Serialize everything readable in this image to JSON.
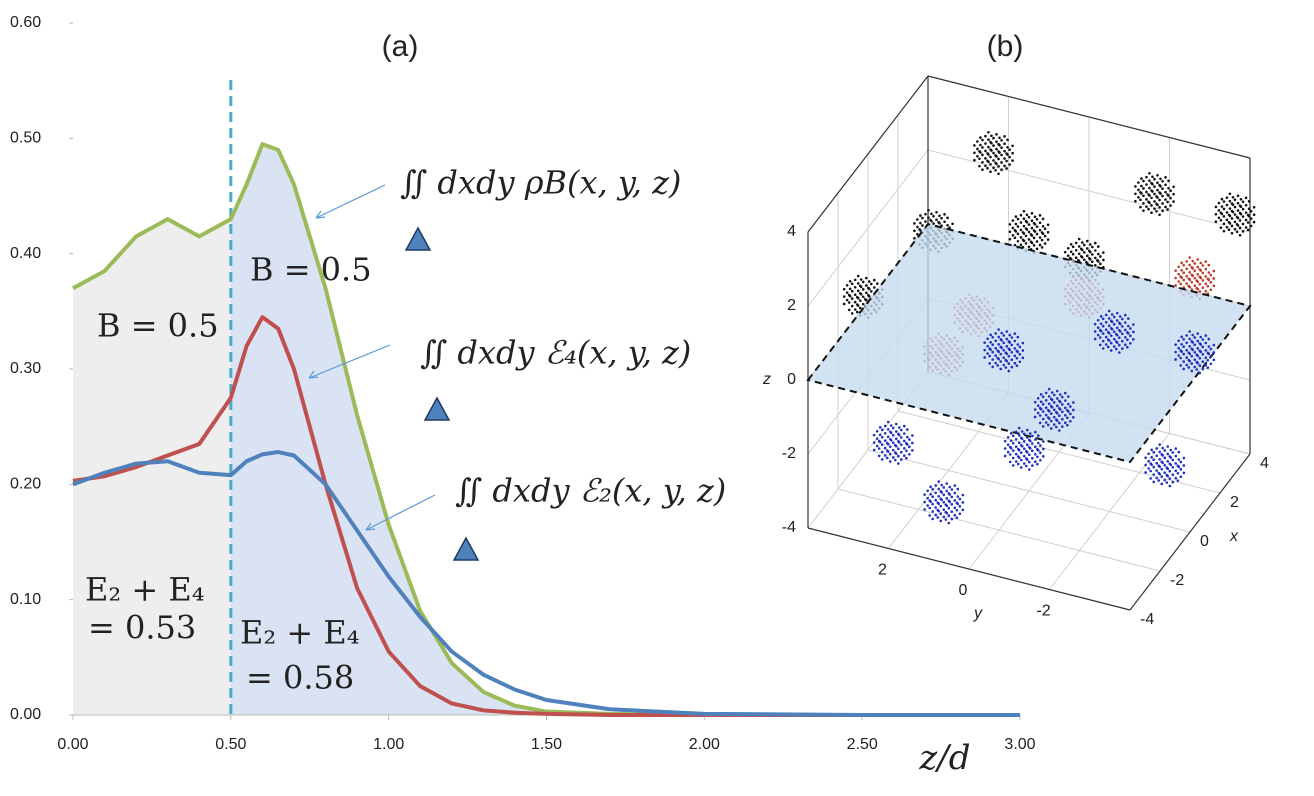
{
  "chart_data": [
    {
      "type": "line",
      "title": "(a)",
      "xlabel": "z/d",
      "x": [
        0,
        0.1,
        0.2,
        0.3,
        0.4,
        0.5,
        0.55,
        0.6,
        0.65,
        0.7,
        0.8,
        0.9,
        1.0,
        1.1,
        1.2,
        1.3,
        1.4,
        1.5,
        1.7,
        2.0,
        2.5,
        3.0
      ],
      "series": [
        {
          "name": "∬ dxdy ρB(x, y, z)",
          "color": "#9bbb59",
          "values": [
            0.37,
            0.385,
            0.415,
            0.43,
            0.415,
            0.43,
            0.46,
            0.495,
            0.49,
            0.46,
            0.37,
            0.26,
            0.165,
            0.09,
            0.045,
            0.02,
            0.008,
            0.003,
            0.001,
            0,
            0,
            0
          ]
        },
        {
          "name": "∬ dxdy ℰ₄(x, y, z)",
          "color": "#c0504d",
          "values": [
            0.203,
            0.207,
            0.215,
            0.225,
            0.235,
            0.275,
            0.32,
            0.345,
            0.335,
            0.3,
            0.2,
            0.11,
            0.055,
            0.025,
            0.01,
            0.004,
            0.002,
            0.001,
            0,
            0,
            0,
            0
          ]
        },
        {
          "name": "∬ dxdy ℰ₂(x, y, z)",
          "color": "#4f81bd",
          "values": [
            0.2,
            0.21,
            0.218,
            0.22,
            0.21,
            0.208,
            0.22,
            0.226,
            0.228,
            0.225,
            0.2,
            0.16,
            0.12,
            0.085,
            0.055,
            0.035,
            0.022,
            0.013,
            0.005,
            0.001,
            0,
            0
          ]
        }
      ],
      "fill_series": 0,
      "divider": 0.5,
      "divider_color": "#4bacc6",
      "fill_colors": [
        "#eeeeee",
        "#dae3f3"
      ],
      "xlim": [
        0,
        3
      ],
      "ylim": [
        0,
        0.6
      ],
      "xticks": [
        {
          "value": 0,
          "label": "0.00"
        },
        {
          "value": 0.5,
          "label": "0.50"
        },
        {
          "value": 1,
          "label": "1.00"
        },
        {
          "value": 1.5,
          "label": "1.50"
        },
        {
          "value": 2,
          "label": "2.00"
        },
        {
          "value": 2.5,
          "label": "2.50"
        },
        {
          "value": 3,
          "label": "3.00"
        }
      ],
      "yticks": [
        {
          "value": 0,
          "label": "0.00"
        },
        {
          "value": 0.1,
          "label": "0.10"
        },
        {
          "value": 0.2,
          "label": "0.20"
        },
        {
          "value": 0.3,
          "label": "0.30"
        },
        {
          "value": 0.4,
          "label": "0.40"
        },
        {
          "value": 0.5,
          "label": "0.50"
        },
        {
          "value": 0.6,
          "label": "0.60"
        }
      ],
      "annotations": [
        "B = 0.5",
        "B = 0.5",
        "E₂ + E₄",
        "= 0.53",
        "E₂ + E₄",
        "= 0.58"
      ]
    },
    {
      "type": "scatter3d",
      "title": "(b)",
      "xlabel": "x",
      "ylabel": "y",
      "zlabel": "z",
      "xticks": [
        -4,
        -2,
        0,
        2,
        4
      ],
      "yticks": [
        2,
        0,
        -2
      ],
      "zticks": [
        -4,
        -2,
        0,
        2,
        4
      ],
      "xlim": [
        -4,
        4
      ],
      "ylim": [
        -4,
        4
      ],
      "zlim": [
        -4,
        4
      ],
      "plane_color": "#c6dbef"
    }
  ]
}
